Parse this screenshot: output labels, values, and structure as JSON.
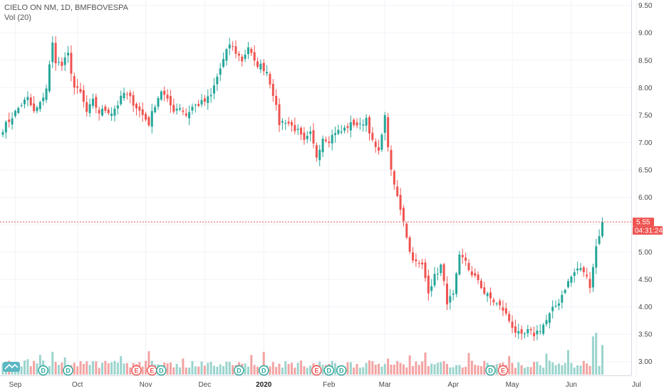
{
  "header": {
    "symbol_line": "CIELO ON NM, 1D, BMFBOVESPA",
    "indicator_line": "Vol (20)"
  },
  "price_badge": {
    "value": "5.55",
    "countdown": "04:31:24"
  },
  "colors": {
    "up": "#26a69a",
    "down": "#ef5350",
    "vol_up": "#9bd4cd",
    "vol_down": "#f2a3a2",
    "grid": "#f0f3f8",
    "axis_text": "#4a4a4a",
    "last_price_line": "#ef5350",
    "event_green": "#26a69a",
    "event_red": "#ef5350",
    "logo": "#5ab7c3"
  },
  "chart_data": {
    "type": "candlestick",
    "title": "CIELO ON NM, 1D, BMFBOVESPA",
    "y_axis": {
      "min": 2.75,
      "max": 9.6,
      "ticks": [
        "3.00",
        "3.50",
        "4.00",
        "4.50",
        "5.00",
        "5.50",
        "6.00",
        "6.50",
        "7.00",
        "7.50",
        "8.00",
        "8.50",
        "9.00",
        "9.50"
      ]
    },
    "x_axis": {
      "labels": [
        {
          "label": "Sep",
          "bar": 4,
          "bold": false
        },
        {
          "label": "Oct",
          "bar": 24,
          "bold": false
        },
        {
          "label": "Nov",
          "bar": 46,
          "bold": false
        },
        {
          "label": "Dec",
          "bar": 65,
          "bold": false
        },
        {
          "label": "2020",
          "bar": 84,
          "bold": true
        },
        {
          "label": "Feb",
          "bar": 105,
          "bold": false
        },
        {
          "label": "Mar",
          "bar": 123,
          "bold": false
        },
        {
          "label": "Apr",
          "bar": 145,
          "bold": false
        },
        {
          "label": "May",
          "bar": 164,
          "bold": false
        },
        {
          "label": "Jun",
          "bar": 183,
          "bold": false
        },
        {
          "label": "Jul",
          "bar": 204,
          "bold": false
        }
      ]
    },
    "last_price": 5.55,
    "volume_indicator": "Vol (20)",
    "volume_min": 0,
    "volume_max": 3.4,
    "events": [
      {
        "label": "D",
        "bar": 13,
        "color": "green"
      },
      {
        "label": "D",
        "bar": 21,
        "color": "green"
      },
      {
        "label": "E",
        "bar": 43,
        "color": "red"
      },
      {
        "label": "E",
        "bar": 48,
        "color": "red"
      },
      {
        "label": "D",
        "bar": 51,
        "color": "green"
      },
      {
        "label": "D",
        "bar": 76,
        "color": "green"
      },
      {
        "label": "D",
        "bar": 84,
        "color": "green"
      },
      {
        "label": "E",
        "bar": 101,
        "color": "red"
      },
      {
        "label": "D",
        "bar": 105,
        "color": "green"
      },
      {
        "label": "D",
        "bar": 109,
        "color": "green"
      },
      {
        "label": "D",
        "bar": 157,
        "color": "green"
      },
      {
        "label": "E",
        "bar": 161,
        "color": "red"
      }
    ],
    "close_path": [
      [
        0,
        7.25
      ],
      [
        2,
        7.4
      ],
      [
        4,
        7.55
      ],
      [
        6,
        7.7
      ],
      [
        8,
        7.8
      ],
      [
        10,
        7.55
      ],
      [
        12,
        7.7
      ],
      [
        14,
        8.0
      ],
      [
        16,
        8.8
      ],
      [
        17,
        8.5
      ],
      [
        19,
        8.4
      ],
      [
        21,
        8.6
      ],
      [
        23,
        8.0
      ],
      [
        25,
        7.9
      ],
      [
        27,
        7.55
      ],
      [
        29,
        7.75
      ],
      [
        31,
        7.55
      ],
      [
        33,
        7.6
      ],
      [
        35,
        7.55
      ],
      [
        37,
        7.7
      ],
      [
        39,
        7.9
      ],
      [
        41,
        7.8
      ],
      [
        43,
        7.65
      ],
      [
        45,
        7.5
      ],
      [
        47,
        7.35
      ],
      [
        49,
        7.7
      ],
      [
        51,
        7.95
      ],
      [
        53,
        7.75
      ],
      [
        55,
        7.6
      ],
      [
        57,
        7.65
      ],
      [
        59,
        7.5
      ],
      [
        61,
        7.65
      ],
      [
        63,
        7.7
      ],
      [
        65,
        7.75
      ],
      [
        67,
        7.85
      ],
      [
        69,
        8.2
      ],
      [
        71,
        8.5
      ],
      [
        73,
        8.8
      ],
      [
        75,
        8.65
      ],
      [
        77,
        8.5
      ],
      [
        79,
        8.75
      ],
      [
        81,
        8.45
      ],
      [
        83,
        8.4
      ],
      [
        85,
        8.3
      ],
      [
        87,
        7.9
      ],
      [
        89,
        7.35
      ],
      [
        91,
        7.4
      ],
      [
        93,
        7.3
      ],
      [
        95,
        7.2
      ],
      [
        97,
        7.0
      ],
      [
        99,
        7.15
      ],
      [
        101,
        6.75
      ],
      [
        103,
        7.1
      ],
      [
        105,
        7.05
      ],
      [
        107,
        7.2
      ],
      [
        109,
        7.2
      ],
      [
        111,
        7.3
      ],
      [
        113,
        7.35
      ],
      [
        115,
        7.3
      ],
      [
        117,
        7.45
      ],
      [
        119,
        7.0
      ],
      [
        121,
        6.8
      ],
      [
        122,
        7.2
      ],
      [
        123,
        7.45
      ],
      [
        125,
        6.45
      ],
      [
        127,
        6.0
      ],
      [
        129,
        5.6
      ],
      [
        131,
        5.0
      ],
      [
        133,
        4.8
      ],
      [
        135,
        4.75
      ],
      [
        137,
        4.3
      ],
      [
        139,
        4.55
      ],
      [
        141,
        4.75
      ],
      [
        143,
        4.1
      ],
      [
        145,
        4.2
      ],
      [
        147,
        4.9
      ],
      [
        149,
        4.85
      ],
      [
        151,
        4.55
      ],
      [
        153,
        4.5
      ],
      [
        155,
        4.25
      ],
      [
        157,
        4.15
      ],
      [
        159,
        4.05
      ],
      [
        161,
        3.95
      ],
      [
        163,
        3.75
      ],
      [
        165,
        3.55
      ],
      [
        167,
        3.45
      ],
      [
        169,
        3.55
      ],
      [
        171,
        3.5
      ],
      [
        173,
        3.6
      ],
      [
        175,
        3.75
      ],
      [
        177,
        3.95
      ],
      [
        179,
        4.1
      ],
      [
        181,
        4.35
      ],
      [
        183,
        4.55
      ],
      [
        185,
        4.7
      ],
      [
        187,
        4.65
      ],
      [
        189,
        4.4
      ],
      [
        191,
        5.1
      ],
      [
        193,
        5.55
      ]
    ],
    "volume_spikes": {
      "8": 1.25,
      "12": 1.6,
      "16": 1.85,
      "20": 1.4,
      "38": 1.5,
      "47": 1.9,
      "58": 1.3,
      "80": 1.6,
      "84": 1.85,
      "124": 1.3,
      "131": 1.55,
      "136": 1.8,
      "150": 1.75,
      "163": 1.5,
      "175": 1.7,
      "182": 2.0,
      "190": 3.1,
      "191": 3.4,
      "193": 2.4
    }
  }
}
